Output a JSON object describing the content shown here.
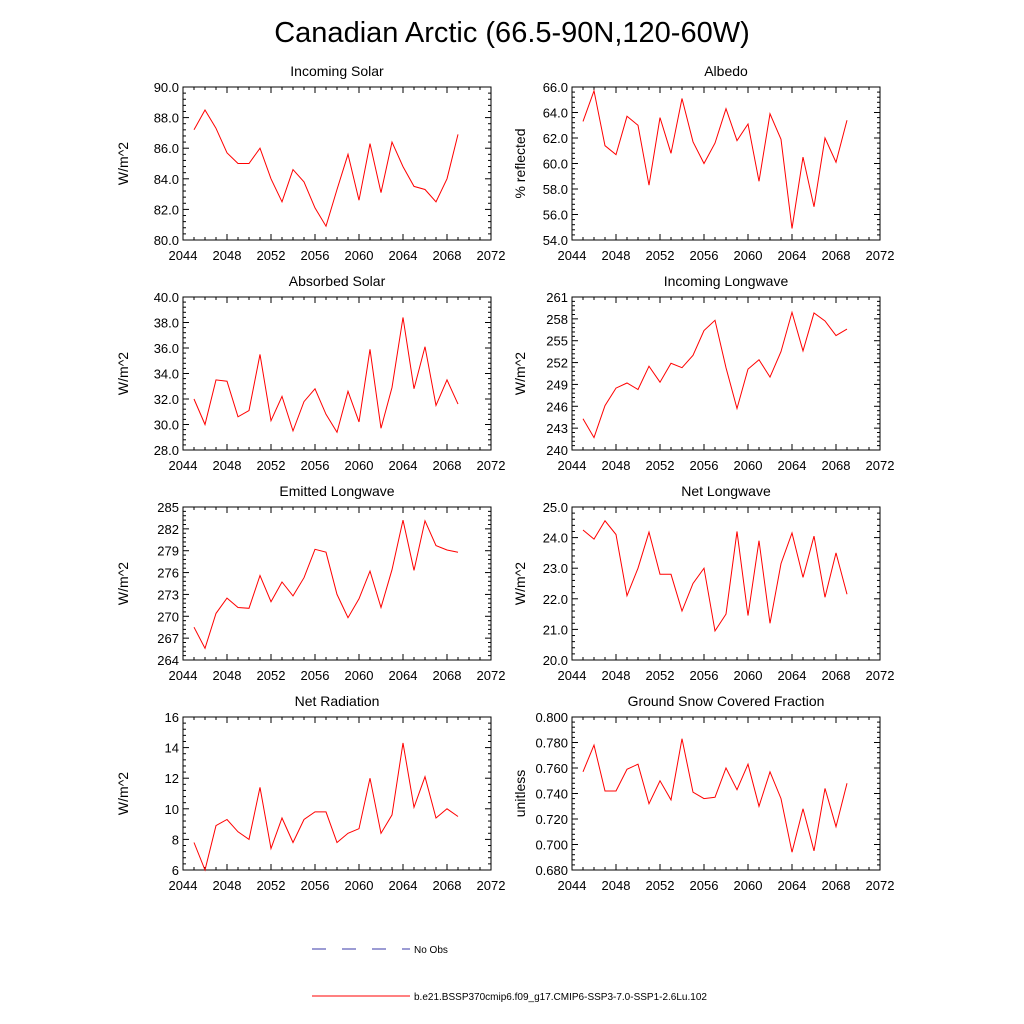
{
  "figure_title": "Canadian Arctic (66.5-90N,120-60W)",
  "colors": {
    "model": "#ff0000",
    "obs": "#3a3aa8",
    "axis": "#000000",
    "background": "#ffffff"
  },
  "legend": {
    "obs_label": "No Obs",
    "model_label": "b.e21.BSSP370cmip6.f09_g17.CMIP6-SSP3-7.0-SSP1-2.6Lu.102"
  },
  "chart_data": [
    {
      "type": "line",
      "title": "Incoming Solar",
      "ylabel": "W/m^2",
      "xlabel": "",
      "xlim": [
        2044,
        2072
      ],
      "ylim": [
        80,
        90
      ],
      "xticks": [
        "2044",
        "2048",
        "2052",
        "2056",
        "2060",
        "2064",
        "2068",
        "2072"
      ],
      "yticks": [
        "80.0",
        "82.0",
        "84.0",
        "86.0",
        "88.0",
        "90.0"
      ],
      "grid": false,
      "series": [
        {
          "x": [
            2045,
            2046,
            2047,
            2048,
            2049,
            2050,
            2051,
            2052,
            2053,
            2054,
            2055,
            2056,
            2057,
            2058,
            2059,
            2060,
            2061,
            2062,
            2063,
            2064,
            2065,
            2066,
            2067,
            2068,
            2069
          ],
          "values": [
            87.2,
            88.5,
            87.3,
            85.7,
            85.0,
            85.0,
            86.0,
            84.0,
            82.5,
            84.6,
            83.8,
            82.1,
            80.9,
            83.3,
            85.6,
            82.6,
            86.3,
            83.1,
            86.4,
            84.8,
            83.5,
            83.3,
            82.5,
            84.0,
            86.9
          ]
        }
      ]
    },
    {
      "type": "line",
      "title": "Albedo",
      "ylabel": "% reflected",
      "xlabel": "",
      "xlim": [
        2044,
        2072
      ],
      "ylim": [
        54,
        66
      ],
      "xticks": [
        "2044",
        "2048",
        "2052",
        "2056",
        "2060",
        "2064",
        "2068",
        "2072"
      ],
      "yticks": [
        "54.0",
        "56.0",
        "58.0",
        "60.0",
        "62.0",
        "64.0",
        "66.0"
      ],
      "grid": false,
      "series": [
        {
          "x": [
            2045,
            2046,
            2047,
            2048,
            2049,
            2050,
            2051,
            2052,
            2053,
            2054,
            2055,
            2056,
            2057,
            2058,
            2059,
            2060,
            2061,
            2062,
            2063,
            2064,
            2065,
            2066,
            2067,
            2068,
            2069
          ],
          "values": [
            63.3,
            65.7,
            61.4,
            60.7,
            63.7,
            63.0,
            58.3,
            63.6,
            60.8,
            65.1,
            61.7,
            60.0,
            61.6,
            64.3,
            61.8,
            63.1,
            58.6,
            63.9,
            61.9,
            54.9,
            60.5,
            56.6,
            62.0,
            60.1,
            63.4
          ]
        }
      ]
    },
    {
      "type": "line",
      "title": "Absorbed Solar",
      "ylabel": "W/m^2",
      "xlabel": "",
      "xlim": [
        2044,
        2072
      ],
      "ylim": [
        28,
        40
      ],
      "xticks": [
        "2044",
        "2048",
        "2052",
        "2056",
        "2060",
        "2064",
        "2068",
        "2072"
      ],
      "yticks": [
        "28.0",
        "30.0",
        "32.0",
        "34.0",
        "36.0",
        "38.0",
        "40.0"
      ],
      "grid": false,
      "series": [
        {
          "x": [
            2045,
            2046,
            2047,
            2048,
            2049,
            2050,
            2051,
            2052,
            2053,
            2054,
            2055,
            2056,
            2057,
            2058,
            2059,
            2060,
            2061,
            2062,
            2063,
            2064,
            2065,
            2066,
            2067,
            2068,
            2069
          ],
          "values": [
            32.0,
            30.0,
            33.5,
            33.4,
            30.6,
            31.1,
            35.5,
            30.3,
            32.2,
            29.5,
            31.8,
            32.8,
            30.8,
            29.4,
            32.6,
            30.2,
            35.9,
            29.7,
            32.9,
            38.4,
            32.8,
            36.1,
            31.5,
            33.5,
            31.6
          ]
        }
      ]
    },
    {
      "type": "line",
      "title": "Incoming Longwave",
      "ylabel": "W/m^2",
      "xlabel": "",
      "xlim": [
        2044,
        2072
      ],
      "ylim": [
        240,
        261
      ],
      "xticks": [
        "2044",
        "2048",
        "2052",
        "2056",
        "2060",
        "2064",
        "2068",
        "2072"
      ],
      "yticks": [
        "240",
        "243",
        "246",
        "249",
        "252",
        "255",
        "258",
        "261"
      ],
      "grid": false,
      "series": [
        {
          "x": [
            2045,
            2046,
            2047,
            2048,
            2049,
            2050,
            2051,
            2052,
            2053,
            2054,
            2055,
            2056,
            2057,
            2058,
            2059,
            2060,
            2061,
            2062,
            2063,
            2064,
            2065,
            2066,
            2067,
            2068,
            2069
          ],
          "values": [
            244.3,
            241.7,
            246.1,
            248.5,
            249.2,
            248.3,
            251.5,
            249.3,
            251.9,
            251.3,
            253.0,
            256.4,
            257.8,
            251.3,
            245.7,
            251.1,
            252.4,
            250.0,
            253.5,
            258.9,
            253.6,
            258.8,
            257.7,
            255.7,
            256.6
          ]
        }
      ]
    },
    {
      "type": "line",
      "title": "Emitted Longwave",
      "ylabel": "W/m^2",
      "xlabel": "",
      "xlim": [
        2044,
        2072
      ],
      "ylim": [
        264,
        285
      ],
      "xticks": [
        "2044",
        "2048",
        "2052",
        "2056",
        "2060",
        "2064",
        "2068",
        "2072"
      ],
      "yticks": [
        "264",
        "267",
        "270",
        "273",
        "276",
        "279",
        "282",
        "285"
      ],
      "grid": false,
      "series": [
        {
          "x": [
            2045,
            2046,
            2047,
            2048,
            2049,
            2050,
            2051,
            2052,
            2053,
            2054,
            2055,
            2056,
            2057,
            2058,
            2059,
            2060,
            2061,
            2062,
            2063,
            2064,
            2065,
            2066,
            2067,
            2068,
            2069
          ],
          "values": [
            268.5,
            265.6,
            270.4,
            272.5,
            271.2,
            271.1,
            275.6,
            272.0,
            274.7,
            272.8,
            275.3,
            279.2,
            278.8,
            273.0,
            269.8,
            272.4,
            276.2,
            271.2,
            276.4,
            283.2,
            276.3,
            283.1,
            279.7,
            279.1,
            278.8
          ]
        }
      ]
    },
    {
      "type": "line",
      "title": "Net Longwave",
      "ylabel": "W/m^2",
      "xlabel": "",
      "xlim": [
        2044,
        2072
      ],
      "ylim": [
        20,
        25
      ],
      "xticks": [
        "2044",
        "2048",
        "2052",
        "2056",
        "2060",
        "2064",
        "2068",
        "2072"
      ],
      "yticks": [
        "20.0",
        "21.0",
        "22.0",
        "23.0",
        "24.0",
        "25.0"
      ],
      "grid": false,
      "series": [
        {
          "x": [
            2045,
            2046,
            2047,
            2048,
            2049,
            2050,
            2051,
            2052,
            2053,
            2054,
            2055,
            2056,
            2057,
            2058,
            2059,
            2060,
            2061,
            2062,
            2063,
            2064,
            2065,
            2066,
            2067,
            2068,
            2069
          ],
          "values": [
            24.25,
            23.95,
            24.55,
            24.1,
            22.1,
            23.0,
            24.18,
            22.8,
            22.8,
            21.6,
            22.5,
            23.0,
            20.95,
            21.5,
            24.2,
            21.45,
            23.9,
            21.2,
            23.15,
            24.15,
            22.7,
            24.05,
            22.05,
            23.5,
            22.15
          ]
        }
      ]
    },
    {
      "type": "line",
      "title": "Net Radiation",
      "ylabel": "W/m^2",
      "xlabel": "",
      "xlim": [
        2044,
        2072
      ],
      "ylim": [
        6,
        16
      ],
      "xticks": [
        "2044",
        "2048",
        "2052",
        "2056",
        "2060",
        "2064",
        "2068",
        "2072"
      ],
      "yticks": [
        "6",
        "8",
        "10",
        "12",
        "14",
        "16"
      ],
      "grid": false,
      "series": [
        {
          "x": [
            2045,
            2046,
            2047,
            2048,
            2049,
            2050,
            2051,
            2052,
            2053,
            2054,
            2055,
            2056,
            2057,
            2058,
            2059,
            2060,
            2061,
            2062,
            2063,
            2064,
            2065,
            2066,
            2067,
            2068,
            2069
          ],
          "values": [
            7.8,
            6.0,
            8.9,
            9.3,
            8.5,
            8.0,
            11.4,
            7.4,
            9.4,
            7.8,
            9.3,
            9.8,
            9.8,
            7.8,
            8.4,
            8.7,
            12.0,
            8.4,
            9.6,
            14.3,
            10.1,
            12.1,
            9.4,
            10.0,
            9.5
          ]
        }
      ]
    },
    {
      "type": "line",
      "title": "Ground Snow Covered Fraction",
      "ylabel": "unitless",
      "xlabel": "",
      "xlim": [
        2044,
        2072
      ],
      "ylim": [
        0.68,
        0.8
      ],
      "xticks": [
        "2044",
        "2048",
        "2052",
        "2056",
        "2060",
        "2064",
        "2068",
        "2072"
      ],
      "yticks": [
        "0.680",
        "0.700",
        "0.720",
        "0.740",
        "0.760",
        "0.780",
        "0.800"
      ],
      "grid": false,
      "series": [
        {
          "x": [
            2045,
            2046,
            2047,
            2048,
            2049,
            2050,
            2051,
            2052,
            2053,
            2054,
            2055,
            2056,
            2057,
            2058,
            2059,
            2060,
            2061,
            2062,
            2063,
            2064,
            2065,
            2066,
            2067,
            2068,
            2069
          ],
          "values": [
            0.757,
            0.778,
            0.742,
            0.742,
            0.759,
            0.763,
            0.732,
            0.75,
            0.735,
            0.783,
            0.741,
            0.736,
            0.737,
            0.76,
            0.743,
            0.763,
            0.73,
            0.757,
            0.736,
            0.694,
            0.728,
            0.695,
            0.744,
            0.714,
            0.748
          ]
        }
      ]
    }
  ]
}
